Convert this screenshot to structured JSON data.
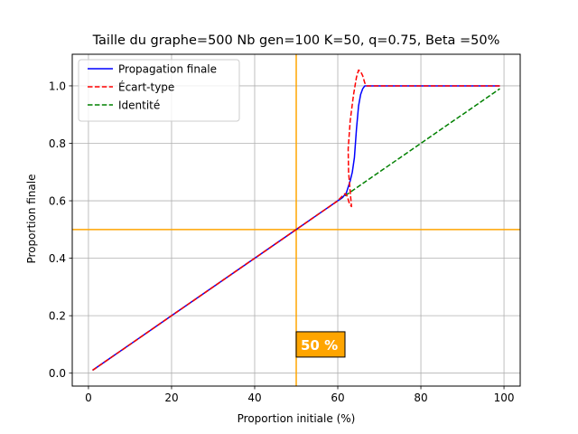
{
  "chart_data": {
    "type": "line",
    "title": "Taille du graphe=500 Nb gen=100 K=50, q=0.75, Beta =50%",
    "xlabel": "Proportion initiale (%)",
    "ylabel": "Proportion finale",
    "xlim": [
      -3.9,
      103.9
    ],
    "ylim": [
      -0.045,
      1.11
    ],
    "xticks": [
      0,
      20,
      40,
      60,
      80,
      100
    ],
    "yticks": [
      0.0,
      0.2,
      0.4,
      0.6,
      0.8,
      1.0
    ],
    "xtick_labels": [
      "0",
      "20",
      "40",
      "60",
      "80",
      "100"
    ],
    "ytick_labels": [
      "0.0",
      "0.2",
      "0.4",
      "0.6",
      "0.8",
      "1.0"
    ],
    "grid": true,
    "legend_position": "upper-left",
    "series": [
      {
        "name": "Propagation finale",
        "color": "#0000ff",
        "style": "solid",
        "x": [
          1,
          10,
          20,
          30,
          40,
          50,
          55,
          60,
          61,
          62,
          63,
          63.5,
          64,
          64.5,
          65,
          65.5,
          66,
          66.5,
          67,
          70,
          80,
          90,
          99
        ],
        "y": [
          0.01,
          0.1,
          0.2,
          0.3,
          0.4,
          0.5,
          0.55,
          0.6,
          0.61,
          0.625,
          0.67,
          0.7,
          0.75,
          0.85,
          0.93,
          0.97,
          0.99,
          1.0,
          1.0,
          1.0,
          1.0,
          1.0,
          1.0
        ]
      },
      {
        "name": "Écart-type",
        "color": "#ff0000",
        "style": "dashed",
        "x": [
          1,
          10,
          20,
          30,
          40,
          50,
          55,
          60,
          61,
          61.8,
          62.3,
          62.8,
          63.3,
          63,
          62.6,
          62.5,
          63,
          63.8,
          64.5,
          65,
          65.5,
          66,
          66.5,
          67,
          70,
          80,
          90,
          99
        ],
        "y": [
          0.01,
          0.1,
          0.2,
          0.3,
          0.4,
          0.5,
          0.55,
          0.6,
          0.615,
          0.625,
          0.615,
          0.59,
          0.58,
          0.63,
          0.7,
          0.78,
          0.88,
          0.97,
          1.03,
          1.055,
          1.05,
          1.035,
          1.01,
          1.0,
          1.0,
          1.0,
          1.0,
          1.0
        ]
      },
      {
        "name": "Identité",
        "color": "#008000",
        "style": "dashed",
        "x": [
          1,
          99
        ],
        "y": [
          0.01,
          0.99
        ]
      }
    ],
    "reference_lines": [
      {
        "orientation": "vertical",
        "value": 50,
        "color": "#ffa500"
      },
      {
        "orientation": "horizontal",
        "value": 0.5,
        "color": "#ffa500"
      }
    ],
    "annotation": {
      "text": "50 %",
      "x": 50,
      "y": 0.1,
      "background": "#ffa500",
      "text_color": "#ffffff"
    }
  }
}
